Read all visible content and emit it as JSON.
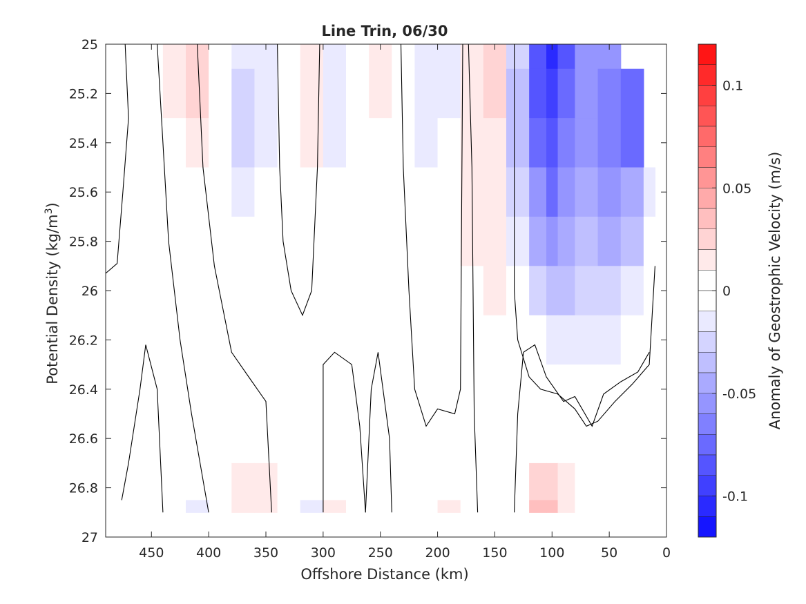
{
  "chart_data": {
    "type": "heatmap",
    "title": "Line Trin, 06/30",
    "xlabel": "Offshore Distance (km)",
    "ylabel_main": "Potential Density (kg/m",
    "ylabel_sup": "3",
    "ylabel_close": ")",
    "colorbar_label": "Anomaly of Geostrophic Velocity (m/s)",
    "x_range": [
      490,
      0
    ],
    "x_reversed": true,
    "y_range": [
      25,
      27
    ],
    "y_reversed": true,
    "x_ticks": [
      "450",
      "400",
      "350",
      "300",
      "250",
      "200",
      "150",
      "100",
      "50",
      "0"
    ],
    "x_tick_values": [
      450,
      400,
      350,
      300,
      250,
      200,
      150,
      100,
      50,
      0
    ],
    "y_ticks": [
      "25",
      "25.2",
      "25.4",
      "25.6",
      "25.8",
      "26",
      "26.2",
      "26.4",
      "26.6",
      "26.8",
      "27"
    ],
    "y_tick_values": [
      25,
      25.2,
      25.4,
      25.6,
      25.8,
      26,
      26.2,
      26.4,
      26.6,
      26.8,
      27
    ],
    "colorbar_range": [
      -0.12,
      0.12
    ],
    "colorbar_step": 0.01,
    "colorbar_ticks": [
      "0.1",
      "0.05",
      "0",
      "-0.05",
      "-0.1"
    ],
    "colorbar_tick_values": [
      0.1,
      0.05,
      0,
      -0.05,
      -0.1
    ],
    "colors": {
      "positive": "#ff0000",
      "negative": "#0000ff",
      "zero": "#ffffff"
    },
    "field": {
      "x": [
        490,
        470,
        450,
        430,
        410,
        390,
        370,
        350,
        330,
        310,
        290,
        270,
        250,
        230,
        210,
        190,
        170,
        150,
        130,
        110,
        100,
        90,
        70,
        50,
        30,
        10
      ],
      "y": [
        25.0,
        25.2,
        25.4,
        25.6,
        25.8,
        26.0,
        26.2,
        26.4,
        26.6,
        26.8,
        26.9
      ],
      "values": [
        [
          0,
          0,
          0,
          0.02,
          0.03,
          0,
          -0.02,
          -0.02,
          0,
          0.02,
          -0.02,
          0,
          0.02,
          0,
          -0.02,
          -0.02,
          0.02,
          0.03,
          -0.03,
          -0.09,
          -0.11,
          -0.09,
          -0.06,
          -0.06,
          null,
          null
        ],
        [
          0,
          0,
          0,
          0.02,
          0.03,
          0,
          -0.03,
          -0.02,
          0,
          0.02,
          -0.02,
          0,
          0.02,
          0,
          -0.02,
          -0.02,
          0.02,
          0.03,
          -0.04,
          -0.09,
          -0.1,
          -0.08,
          -0.06,
          -0.07,
          -0.08,
          null
        ],
        [
          0,
          0,
          0,
          0.01,
          0.02,
          0.01,
          -0.03,
          -0.02,
          0,
          0.02,
          -0.02,
          0,
          0.01,
          0,
          -0.02,
          -0.01,
          0.02,
          0.02,
          -0.04,
          -0.08,
          -0.09,
          -0.07,
          -0.06,
          -0.07,
          -0.08,
          null
        ],
        [
          0,
          0,
          0,
          0.01,
          0.01,
          0.01,
          -0.02,
          -0.01,
          0,
          0.01,
          -0.01,
          0,
          0.01,
          0,
          -0.01,
          -0.01,
          0.02,
          0.02,
          -0.03,
          -0.06,
          -0.08,
          -0.06,
          -0.05,
          -0.06,
          -0.05,
          -0.02
        ],
        [
          0,
          0,
          0,
          0,
          0.01,
          0.01,
          -0.01,
          -0.01,
          0,
          0.01,
          -0.01,
          0,
          0.01,
          0,
          -0.01,
          -0.01,
          0.02,
          0.02,
          -0.02,
          -0.05,
          -0.06,
          -0.05,
          -0.04,
          -0.05,
          -0.04,
          -0.01
        ],
        [
          0,
          0,
          0,
          0,
          0,
          0.01,
          0.01,
          0,
          0,
          0,
          0,
          0,
          0.01,
          0,
          -0.01,
          -0.01,
          0.01,
          0.02,
          -0.01,
          -0.03,
          -0.04,
          -0.04,
          -0.03,
          -0.03,
          -0.02,
          0
        ],
        [
          0,
          0,
          0,
          0,
          0,
          0.01,
          0.01,
          0,
          0,
          0,
          0,
          0,
          0,
          0,
          -0.01,
          0,
          0.01,
          0.01,
          0,
          -0.01,
          -0.02,
          -0.02,
          -0.02,
          -0.02,
          -0.01,
          0
        ],
        [
          0,
          0,
          0,
          -0.01,
          0,
          0.01,
          0.01,
          0.01,
          0,
          0,
          0,
          0,
          0,
          0,
          0,
          0,
          0,
          0,
          0,
          0,
          0,
          0,
          -0.01,
          -0.01,
          0,
          0
        ],
        [
          0,
          0,
          0,
          -0.01,
          0,
          0.01,
          0.01,
          0.01,
          0,
          -0.01,
          0.01,
          0,
          0,
          0,
          0,
          0,
          0,
          0,
          0,
          0.01,
          0.01,
          0.01,
          0.01,
          0.01,
          0.01,
          0
        ],
        [
          0,
          0,
          0,
          -0.01,
          -0.01,
          0.01,
          0.02,
          0.02,
          0,
          -0.01,
          0.01,
          0,
          -0.01,
          0,
          0.01,
          0.01,
          0,
          -0.01,
          0,
          0.03,
          0.03,
          0.02,
          0.01,
          0.01,
          0,
          0
        ],
        [
          0,
          0,
          0,
          -0.01,
          -0.02,
          0.01,
          0.02,
          0.02,
          0,
          -0.02,
          0.02,
          0,
          -0.01,
          0,
          0.01,
          0.02,
          0,
          -0.01,
          0,
          0.04,
          0.04,
          0.02,
          0.01,
          0,
          0,
          0
        ]
      ]
    },
    "zero_contours": [
      [
        [
          490,
          25.93
        ],
        [
          480,
          25.89
        ],
        [
          475,
          25.6
        ],
        [
          470,
          25.3
        ],
        [
          472,
          25.1
        ],
        [
          473,
          25.0
        ]
      ],
      [
        [
          476,
          26.85
        ],
        [
          470,
          26.7
        ],
        [
          460,
          26.4
        ],
        [
          455,
          26.22
        ],
        [
          445,
          26.4
        ],
        [
          440,
          26.9
        ]
      ],
      [
        [
          445,
          25.0
        ],
        [
          440,
          25.4
        ],
        [
          435,
          25.8
        ],
        [
          425,
          26.2
        ],
        [
          415,
          26.5
        ],
        [
          400,
          26.9
        ]
      ],
      [
        [
          410,
          25.0
        ],
        [
          405,
          25.5
        ],
        [
          395,
          25.9
        ],
        [
          380,
          26.25
        ],
        [
          365,
          26.35
        ],
        [
          350,
          26.45
        ],
        [
          345,
          26.9
        ]
      ],
      [
        [
          340,
          25.0
        ],
        [
          338,
          25.5
        ],
        [
          335,
          25.8
        ],
        [
          328,
          26.0
        ],
        [
          318,
          26.1
        ],
        [
          310,
          26.0
        ],
        [
          305,
          25.5
        ],
        [
          303,
          25.0
        ]
      ],
      [
        [
          300,
          26.9
        ],
        [
          300,
          26.3
        ],
        [
          290,
          26.25
        ],
        [
          275,
          26.3
        ],
        [
          268,
          26.55
        ],
        [
          263,
          26.9
        ]
      ],
      [
        [
          263,
          26.9
        ],
        [
          258,
          26.4
        ],
        [
          252,
          26.25
        ],
        [
          242,
          26.6
        ],
        [
          240,
          26.9
        ]
      ],
      [
        [
          232,
          25.0
        ],
        [
          230,
          25.5
        ],
        [
          225,
          26.0
        ],
        [
          220,
          26.4
        ],
        [
          210,
          26.55
        ],
        [
          200,
          26.48
        ],
        [
          185,
          26.5
        ],
        [
          180,
          26.4
        ],
        [
          178,
          25.0
        ]
      ],
      [
        [
          173,
          25.0
        ],
        [
          170,
          25.5
        ],
        [
          168,
          26.5
        ],
        [
          165,
          26.9
        ]
      ],
      [
        [
          133,
          25.0
        ],
        [
          133,
          26.0
        ],
        [
          130,
          26.2
        ],
        [
          120,
          26.35
        ],
        [
          110,
          26.4
        ],
        [
          95,
          26.42
        ],
        [
          80,
          26.48
        ],
        [
          70,
          26.55
        ],
        [
          60,
          26.53
        ],
        [
          45,
          26.45
        ],
        [
          30,
          26.38
        ],
        [
          15,
          26.3
        ],
        [
          10,
          25.9
        ]
      ],
      [
        [
          133,
          26.9
        ],
        [
          130,
          26.5
        ],
        [
          125,
          26.25
        ],
        [
          115,
          26.22
        ],
        [
          105,
          26.35
        ],
        [
          90,
          26.45
        ],
        [
          80,
          26.43
        ],
        [
          65,
          26.55
        ],
        [
          55,
          26.42
        ],
        [
          40,
          26.37
        ],
        [
          25,
          26.33
        ],
        [
          15,
          26.25
        ]
      ]
    ]
  }
}
